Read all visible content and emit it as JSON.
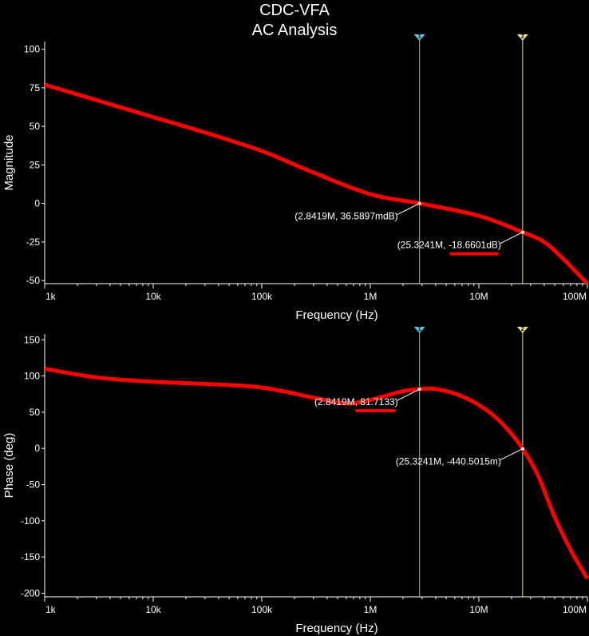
{
  "title_line1": "CDC-VFA",
  "title_line2": "AC Analysis",
  "colors": {
    "background": "#000000",
    "trace": "#ff0000",
    "axis": "#ffffff",
    "cursor1": "#5fc8d8",
    "cursor2": "#ece59a",
    "annotation": "#ffffff"
  },
  "chart_data": [
    {
      "type": "line",
      "name": "magnitude-plot",
      "xlabel": "Frequency (Hz)",
      "ylabel": "Magnitude",
      "xscale": "log",
      "xlim": [
        1000,
        100000000
      ],
      "ylim": [
        -52,
        105
      ],
      "x_ticks": [
        {
          "value": 1000,
          "label": "1k"
        },
        {
          "value": 10000,
          "label": "10k"
        },
        {
          "value": 100000,
          "label": "100k"
        },
        {
          "value": 1000000,
          "label": "1M"
        },
        {
          "value": 10000000,
          "label": "10M"
        },
        {
          "value": 100000000,
          "label": "100M"
        }
      ],
      "y_ticks": [
        {
          "value": 100,
          "label": "100"
        },
        {
          "value": 75,
          "label": "75"
        },
        {
          "value": 50,
          "label": "50"
        },
        {
          "value": 25,
          "label": "25"
        },
        {
          "value": 0,
          "label": "0"
        },
        {
          "value": -25,
          "label": "-25"
        },
        {
          "value": -50,
          "label": "-50"
        }
      ],
      "series": [
        {
          "x": [
            1000,
            3000,
            10000,
            30000,
            100000,
            300000,
            1000000,
            2841900,
            10000000,
            25324100,
            40000000,
            60000000,
            100000000
          ],
          "y": [
            77,
            67,
            56,
            46,
            34,
            20,
            6,
            0.0366,
            -8,
            -18.66,
            -25,
            -36,
            -52
          ]
        }
      ],
      "cursors": [
        {
          "x": 2841900,
          "y": 0.0366,
          "flag": "1",
          "color": "#5fc8d8",
          "label": "(2.8419M, 36.5897mdB)",
          "label_pos": "left-below"
        },
        {
          "x": 25324100,
          "y": -18.6601,
          "flag": "2",
          "color": "#ece59a",
          "label": "(25.3241M, -18.6601dB)",
          "label_pos": "left-below",
          "underlined": true
        }
      ]
    },
    {
      "type": "line",
      "name": "phase-plot",
      "xlabel": "Frequency (Hz)",
      "ylabel": "Phase (deg)",
      "xscale": "log",
      "xlim": [
        1000,
        100000000
      ],
      "ylim": [
        -205,
        158
      ],
      "x_ticks": [
        {
          "value": 1000,
          "label": "1k"
        },
        {
          "value": 10000,
          "label": "10k"
        },
        {
          "value": 100000,
          "label": "100k"
        },
        {
          "value": 1000000,
          "label": "1M"
        },
        {
          "value": 10000000,
          "label": "10M"
        },
        {
          "value": 100000000,
          "label": "100M"
        }
      ],
      "y_ticks": [
        {
          "value": 150,
          "label": "150"
        },
        {
          "value": 100,
          "label": "100"
        },
        {
          "value": 50,
          "label": "50"
        },
        {
          "value": 0,
          "label": "0"
        },
        {
          "value": -50,
          "label": "-50"
        },
        {
          "value": -100,
          "label": "-100"
        },
        {
          "value": -150,
          "label": "-150"
        },
        {
          "value": -200,
          "label": "-200"
        }
      ],
      "series": [
        {
          "x": [
            1000,
            3000,
            10000,
            30000,
            100000,
            300000,
            600000,
            1000000,
            2000000,
            2841900,
            4000000,
            7000000,
            12000000,
            18000000,
            25324100,
            35000000,
            50000000,
            70000000,
            100000000
          ],
          "y": [
            110,
            98,
            92,
            89,
            84,
            70,
            62,
            67,
            79,
            81.7,
            82,
            72,
            52,
            28,
            -0.44,
            -37,
            -95,
            -140,
            -180
          ]
        }
      ],
      "cursors": [
        {
          "x": 2841900,
          "y": 81.7133,
          "flag": "1",
          "color": "#5fc8d8",
          "label": "(2.8419M, 81.7133)",
          "label_pos": "left-below",
          "underlined": true
        },
        {
          "x": 25324100,
          "y": -0.4405,
          "flag": "2",
          "color": "#ece59a",
          "label": "(25.3241M, -440.5015m)",
          "label_pos": "left-below"
        }
      ]
    }
  ]
}
